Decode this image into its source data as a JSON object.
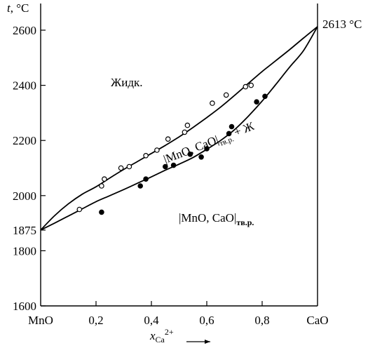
{
  "chart_data": {
    "type": "line",
    "title": "",
    "xlabel": {
      "base": "x",
      "sub": "Ca",
      "sup": "2+",
      "arrow": "→"
    },
    "ylabel": "t, °C",
    "xlim": [
      0,
      1
    ],
    "ylim": [
      1600,
      2613
    ],
    "x_ticks": [
      {
        "value": 0,
        "label": "MnO"
      },
      {
        "value": 0.2,
        "label": "0,2"
      },
      {
        "value": 0.4,
        "label": "0,4"
      },
      {
        "value": 0.6,
        "label": "0,6"
      },
      {
        "value": 0.8,
        "label": "0,8"
      },
      {
        "value": 1,
        "label": "CaO"
      }
    ],
    "y_ticks": [
      {
        "value": 1600,
        "label": "1600"
      },
      {
        "value": 1800,
        "label": "1800"
      },
      {
        "value": 1875,
        "label": "1875"
      },
      {
        "value": 2000,
        "label": "2000"
      },
      {
        "value": 2200,
        "label": "2200"
      },
      {
        "value": 2400,
        "label": "2400"
      },
      {
        "value": 2600,
        "label": "2600"
      }
    ],
    "grid": false,
    "series": [
      {
        "role": "liquidus",
        "x": [
          0,
          0.05,
          0.1,
          0.15,
          0.2,
          0.25,
          0.3,
          0.35,
          0.4,
          0.45,
          0.5,
          0.55,
          0.6,
          0.65,
          0.7,
          0.75,
          0.8,
          0.85,
          0.9,
          0.95,
          1.0
        ],
        "y": [
          1875,
          1927,
          1970,
          2005,
          2032,
          2064,
          2095,
          2124,
          2153,
          2182,
          2213,
          2247,
          2283,
          2321,
          2363,
          2407,
          2450,
          2490,
          2530,
          2572,
          2613
        ]
      },
      {
        "role": "solidus",
        "x": [
          0,
          0.05,
          0.1,
          0.15,
          0.2,
          0.25,
          0.3,
          0.35,
          0.4,
          0.45,
          0.5,
          0.55,
          0.6,
          0.65,
          0.7,
          0.75,
          0.8,
          0.85,
          0.9,
          0.95,
          1.0
        ],
        "y": [
          1875,
          1900,
          1926,
          1952,
          1978,
          2000,
          2022,
          2045,
          2068,
          2092,
          2114,
          2138,
          2168,
          2200,
          2239,
          2288,
          2343,
          2404,
          2467,
          2527,
          2613
        ]
      },
      {
        "role": "points-open",
        "marker": "open-circle",
        "x": [
          0.14,
          0.22,
          0.23,
          0.29,
          0.32,
          0.38,
          0.42,
          0.46,
          0.52,
          0.53,
          0.62,
          0.67,
          0.74,
          0.76
        ],
        "y": [
          1950,
          2035,
          2060,
          2100,
          2105,
          2145,
          2165,
          2205,
          2230,
          2255,
          2335,
          2365,
          2395,
          2400
        ]
      },
      {
        "role": "points-filled",
        "marker": "filled-circle",
        "x": [
          0.22,
          0.36,
          0.38,
          0.45,
          0.48,
          0.54,
          0.58,
          0.6,
          0.68,
          0.69,
          0.78,
          0.81
        ],
        "y": [
          1940,
          2035,
          2060,
          2105,
          2110,
          2150,
          2140,
          2170,
          2225,
          2250,
          2340,
          2360
        ]
      }
    ],
    "annotations": [
      {
        "text": "Жидк.",
        "x": 0.27,
        "y": 2415
      },
      {
        "text": "2613 °C",
        "x": 1.0,
        "y": 2613
      },
      {
        "text": "|MnO, CaO|",
        "sub": "тв.р.",
        "x": 0.5,
        "y": 1830
      },
      {
        "text": "|MnO, CaO|",
        "sub": "тв.р.",
        "suffix": " + Ж",
        "x": 0.44,
        "y": 2195,
        "rotate": -21
      }
    ]
  }
}
